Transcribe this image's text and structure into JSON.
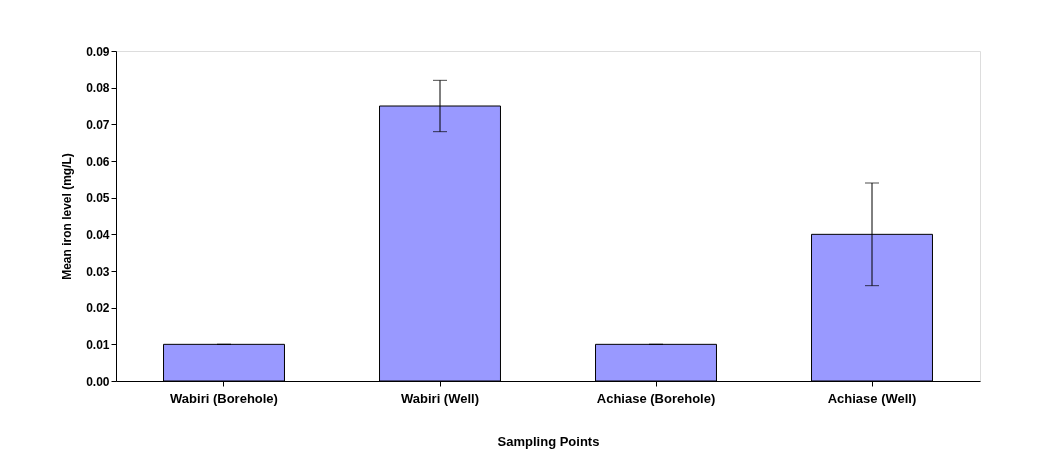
{
  "chart_data": {
    "type": "bar",
    "xlabel": "Sampling Points",
    "ylabel": "Mean iron level (mg/L)",
    "categories": [
      "Wabiri (Borehole)",
      "Wabiri (Well)",
      "Achiase (Borehole)",
      "Achiase (Well)"
    ],
    "values": [
      0.01,
      0.075,
      0.01,
      0.04
    ],
    "errors": [
      0,
      0.007,
      0,
      0.014
    ],
    "color": "#9999ff",
    "ylim": [
      0,
      0.09
    ],
    "yticks": [
      {
        "value": 0,
        "label": "0.00"
      },
      {
        "value": 0.01,
        "label": "0.01"
      },
      {
        "value": 0.02,
        "label": "0.02"
      },
      {
        "value": 0.03,
        "label": "0.03"
      },
      {
        "value": 0.04,
        "label": "0.04"
      },
      {
        "value": 0.05,
        "label": "0.05"
      },
      {
        "value": 0.06,
        "label": "0.06"
      },
      {
        "value": 0.07,
        "label": "0.07"
      },
      {
        "value": 0.08,
        "label": "0.08"
      },
      {
        "value": 0.09,
        "label": "0.09"
      }
    ],
    "grid": false
  }
}
